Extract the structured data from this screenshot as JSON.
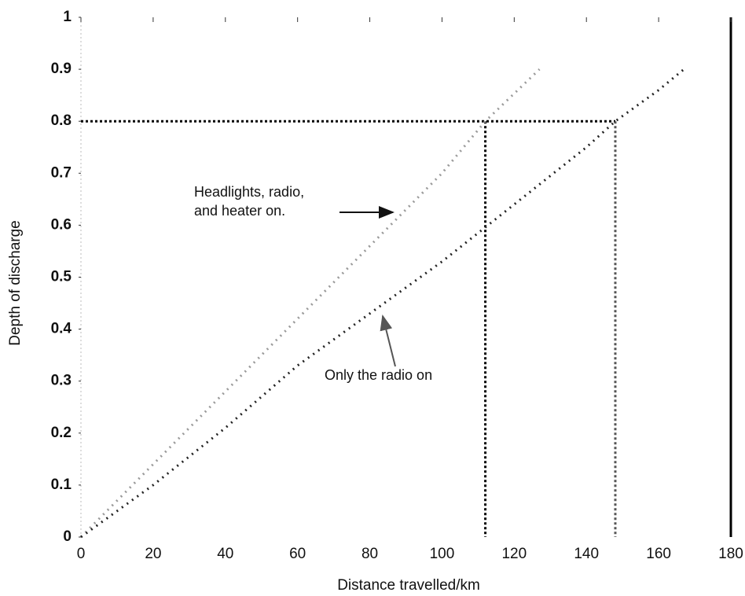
{
  "chart_data": {
    "type": "line",
    "xlabel": "Distance travelled/km",
    "ylabel": "Depth of discharge",
    "xlim": [
      0,
      180
    ],
    "xticks": [
      0,
      20,
      40,
      60,
      80,
      100,
      120,
      140,
      160,
      180
    ],
    "ylim": [
      0,
      1
    ],
    "yticks": [
      0,
      0.1,
      0.2,
      0.3,
      0.4,
      0.5,
      0.6,
      0.7,
      0.8,
      0.9,
      1
    ],
    "series": [
      {
        "color": "#9a9a9a",
        "x": [
          0,
          20,
          40,
          60,
          80,
          100,
          112,
          127
        ],
        "values": [
          0,
          0.14,
          0.28,
          0.42,
          0.56,
          0.7,
          0.8,
          0.9
        ]
      },
      {
        "color": "#222222",
        "x": [
          0,
          20,
          40,
          60,
          80,
          100,
          120,
          140,
          148,
          160,
          167
        ],
        "values": [
          0,
          0.1,
          0.21,
          0.33,
          0.43,
          0.53,
          0.64,
          0.75,
          0.8,
          0.86,
          0.9
        ]
      }
    ],
    "reference_lines": {
      "y": 0.8,
      "x": [
        112,
        148
      ]
    },
    "annotations": [
      {
        "lines": [
          "Headlights, radio,",
          "and heater on."
        ]
      },
      {
        "lines": [
          "Only the radio on"
        ]
      }
    ]
  }
}
